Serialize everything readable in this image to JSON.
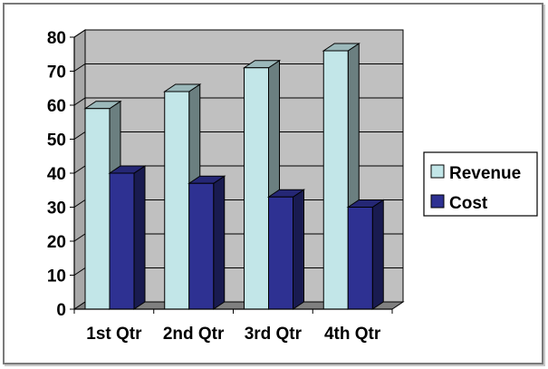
{
  "chart_data": {
    "type": "bar",
    "style": "3d-clustered-column",
    "categories": [
      "1st Qtr",
      "2nd Qtr",
      "3rd Qtr",
      "4th Qtr"
    ],
    "series": [
      {
        "name": "Revenue",
        "values": [
          59,
          64,
          71,
          76
        ],
        "color": "#c2e6e8"
      },
      {
        "name": "Cost",
        "values": [
          40,
          37,
          33,
          30
        ],
        "color": "#2e3192"
      }
    ],
    "y_ticks": [
      "0",
      "10",
      "20",
      "30",
      "40",
      "50",
      "60",
      "70",
      "80"
    ],
    "ylim": [
      0,
      80
    ],
    "grid": true,
    "legend_position": "right",
    "colors": {
      "plot_back": "#c0c0c0",
      "plot_floor": "#808080",
      "gridline": "#000000"
    }
  }
}
